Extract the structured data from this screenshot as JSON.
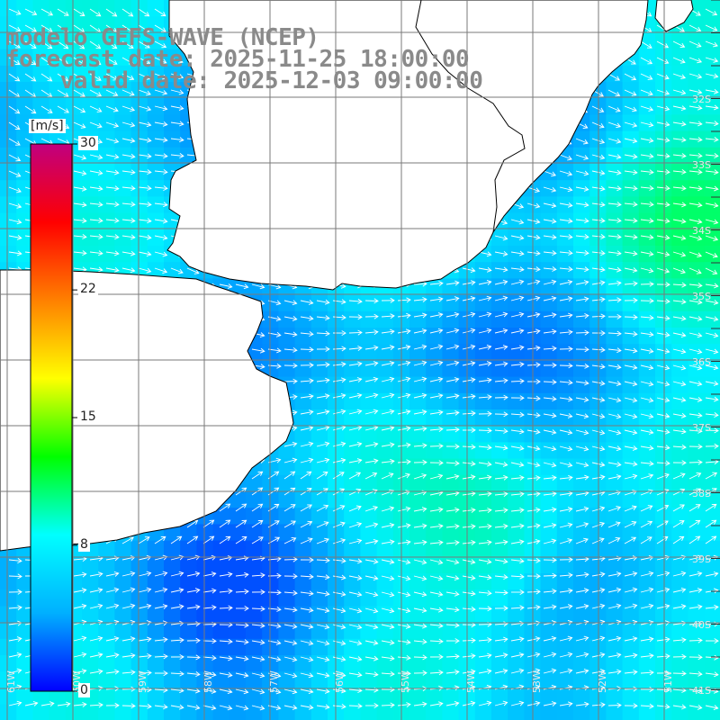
{
  "title": {
    "line1": "modelo GEFS-WAVE (NCEP)",
    "line2": "forecast date: 2025-11-25 18:00:00",
    "line3": "    valid date: 2025-12-03 09:00:00"
  },
  "colorbar": {
    "unit": "[m/s]",
    "range": [
      0,
      30
    ],
    "ticks": [
      {
        "value": 30,
        "label": "30"
      },
      {
        "value": 22,
        "label": "22"
      },
      {
        "value": 15,
        "label": "15"
      },
      {
        "value": 8,
        "label": "8"
      },
      {
        "value": 0,
        "label": "0"
      }
    ],
    "colors": [
      "#0000ff",
      "#00b0ff",
      "#00ffff",
      "#00ff00",
      "#ffff00",
      "#ff8000",
      "#ff0000",
      "#c00080"
    ]
  },
  "grid": {
    "lat_labels": [
      "32S",
      "33S",
      "34S",
      "35S",
      "36S",
      "37S",
      "38S",
      "39S",
      "40S",
      "41S"
    ],
    "lon_labels": [
      "61W",
      "60W",
      "59W",
      "58W",
      "57W",
      "56W",
      "55W",
      "54W",
      "53W",
      "52W",
      "51W"
    ]
  },
  "colors": {
    "land": "#ffffff",
    "coast": "#000000",
    "grid": "#7a7a7a",
    "arrows": "#ffffff",
    "title": "#8a8a8a"
  }
}
